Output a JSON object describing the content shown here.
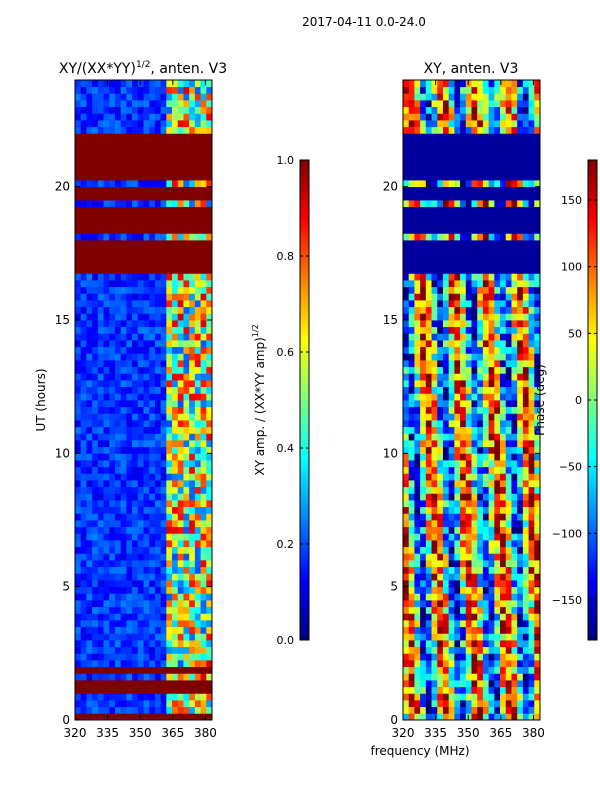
{
  "suptitle": "2017-04-11 0.0-24.0",
  "shared_xlabel": "frequency (MHz)",
  "colormap": [
    "#00007f",
    "#0000ff",
    "#007fff",
    "#00ffff",
    "#7fff7f",
    "#ffff00",
    "#ff7f00",
    "#ff0000",
    "#7f0000"
  ],
  "chart_data": [
    {
      "type": "heatmap",
      "title_main": "XY/(XX*YY)",
      "title_sup": "1/2",
      "title_tail": ", anten. V3",
      "xlabel": "",
      "ylabel": "UT (hours)",
      "xlim": [
        320,
        383
      ],
      "ylim": [
        0,
        24
      ],
      "xticks": [
        "320",
        "335",
        "350",
        "365",
        "380"
      ],
      "xtick_values": [
        320,
        335,
        350,
        365,
        380
      ],
      "yticks": [
        "0",
        "5",
        "10",
        "15",
        "20"
      ],
      "ytick_values": [
        0,
        5,
        10,
        15,
        20
      ],
      "colorbar": {
        "label_main": "XY amp. / (XX*YY amp)",
        "label_sup": "1/2",
        "range": [
          0.0,
          1.0
        ],
        "ticks": [
          "0.0",
          "0.2",
          "0.4",
          "0.6",
          "0.8",
          "1.0"
        ],
        "tick_values": [
          0.0,
          0.2,
          0.4,
          0.6,
          0.8,
          1.0
        ]
      },
      "saturated_bands_hours": [
        [
          0,
          0.2
        ],
        [
          1.0,
          1.6
        ],
        [
          1.8,
          2.0
        ],
        [
          16.8,
          18.0
        ],
        [
          18.3,
          19.2
        ],
        [
          19.5,
          20.0
        ],
        [
          20.2,
          22.0
        ],
        [
          22.7,
          22.8
        ]
      ],
      "dense_band_mhz": [
        363,
        382
      ],
      "dense_band_strength": 0.55
    },
    {
      "type": "heatmap",
      "title_main": "XY, anten. V3",
      "xlabel": "frequency (MHz)",
      "ylabel": "",
      "xlim": [
        320,
        383
      ],
      "ylim": [
        0,
        24
      ],
      "xticks": [
        "320",
        "335",
        "350",
        "365",
        "380"
      ],
      "xtick_values": [
        320,
        335,
        350,
        365,
        380
      ],
      "yticks": [
        "0",
        "5",
        "10",
        "15",
        "20"
      ],
      "ytick_values": [
        0,
        5,
        10,
        15,
        20
      ],
      "colorbar": {
        "label_main": "Phase (deg)",
        "range": [
          -180,
          180
        ],
        "ticks": [
          "−150",
          "−100",
          "−50",
          "0",
          "50",
          "100",
          "150"
        ],
        "tick_values": [
          -150,
          -100,
          -50,
          0,
          50,
          100,
          150
        ]
      },
      "saturated_bands_hours": [
        [
          16.8,
          18.0
        ],
        [
          18.3,
          19.2
        ],
        [
          19.5,
          20.0
        ],
        [
          20.2,
          22.0
        ]
      ],
      "saturated_level": 0.03
    }
  ]
}
